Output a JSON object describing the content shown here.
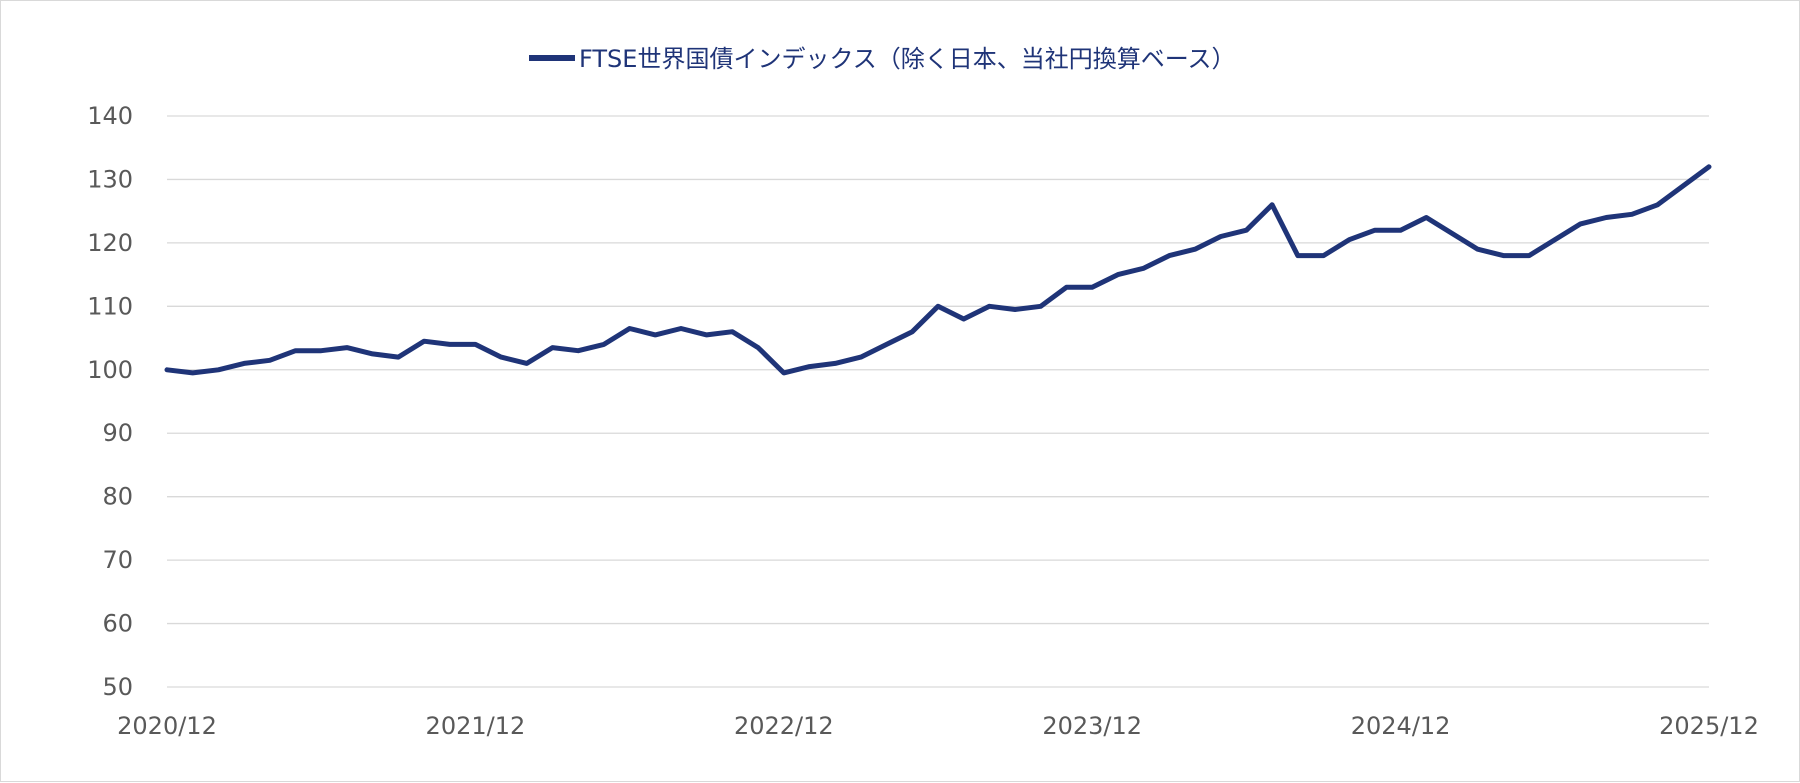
{
  "chart_data": {
    "type": "line",
    "title": "",
    "xlabel": "",
    "ylabel": "",
    "ylim": [
      50,
      140
    ],
    "yticks": [
      140,
      130,
      120,
      110,
      100,
      90,
      80,
      70,
      60,
      50
    ],
    "xticks": [
      "2020/12",
      "2021/12",
      "2022/12",
      "2023/12",
      "2024/12",
      "2025/12"
    ],
    "grid": true,
    "legend_position": "top-center",
    "line_color": "#1f3478",
    "series": [
      {
        "name": "FTSE世界国債インデックス（除く日本、当社円換算ベース）",
        "x": [
          "2020/12",
          "2021/01",
          "2021/02",
          "2021/03",
          "2021/04",
          "2021/05",
          "2021/06",
          "2021/07",
          "2021/08",
          "2021/09",
          "2021/10",
          "2021/11",
          "2021/12",
          "2022/01",
          "2022/02",
          "2022/03",
          "2022/04",
          "2022/05",
          "2022/06",
          "2022/07",
          "2022/08",
          "2022/09",
          "2022/10",
          "2022/11",
          "2022/12",
          "2023/01",
          "2023/02",
          "2023/03",
          "2023/04",
          "2023/05",
          "2023/06",
          "2023/07",
          "2023/08",
          "2023/09",
          "2023/10",
          "2023/11",
          "2023/12",
          "2024/01",
          "2024/02",
          "2024/03",
          "2024/04",
          "2024/05",
          "2024/06",
          "2024/07",
          "2024/08",
          "2024/09",
          "2024/10",
          "2024/11",
          "2024/12",
          "2025/01",
          "2025/02",
          "2025/03",
          "2025/04",
          "2025/05",
          "2025/06",
          "2025/07",
          "2025/08",
          "2025/09",
          "2025/10",
          "2025/11",
          "2025/12"
        ],
        "values": [
          100,
          99.5,
          100,
          101,
          101.5,
          103,
          103,
          103.5,
          102.5,
          102,
          104.5,
          104,
          104,
          102,
          101,
          103.5,
          103,
          104,
          106.5,
          105.5,
          106.5,
          105.5,
          106,
          103.5,
          99.5,
          100.5,
          101,
          102,
          104,
          106,
          110,
          108,
          110,
          109.5,
          110,
          113,
          113,
          115,
          116,
          118,
          119,
          121,
          122,
          126,
          118,
          118,
          120.5,
          122,
          122,
          124,
          121.5,
          119,
          118,
          118,
          120.5,
          123,
          124,
          124.5,
          126,
          129,
          132
        ]
      }
    ]
  }
}
